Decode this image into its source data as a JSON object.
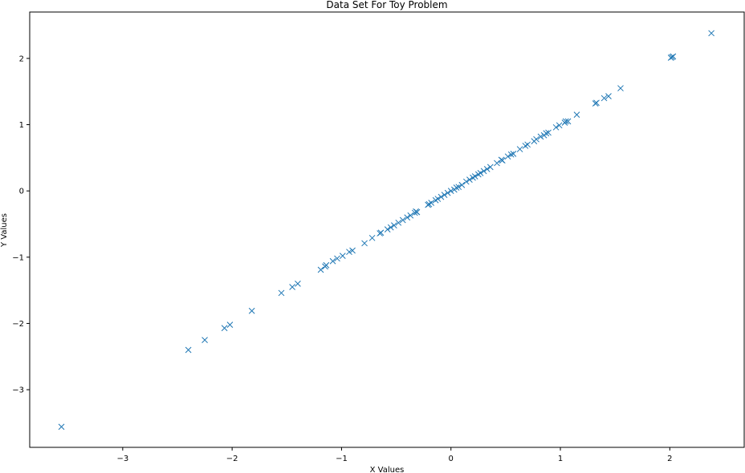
{
  "chart_data": {
    "type": "scatter",
    "title": "Data Set For Toy Problem",
    "xlabel": "X Values",
    "ylabel": "Y Values",
    "xlim": [
      -3.85,
      2.68
    ],
    "ylim": [
      -3.87,
      2.7
    ],
    "xticks": [
      -3,
      -2,
      -1,
      0,
      1,
      2
    ],
    "yticks": [
      -3,
      -2,
      -1,
      0,
      1,
      2
    ],
    "xtick_labels": [
      "−3",
      "−2",
      "−1",
      "0",
      "1",
      "2"
    ],
    "ytick_labels": [
      "−3",
      "−2",
      "−1",
      "0",
      "1",
      "2"
    ],
    "grid": false,
    "marker": "x",
    "color": "#1f77b4",
    "points": [
      [
        -3.56,
        -3.56
      ],
      [
        -2.4,
        -2.4
      ],
      [
        -2.25,
        -2.25
      ],
      [
        -2.07,
        -2.07
      ],
      [
        -2.02,
        -2.02
      ],
      [
        -1.82,
        -1.81
      ],
      [
        -1.55,
        -1.54
      ],
      [
        -1.45,
        -1.45
      ],
      [
        -1.4,
        -1.4
      ],
      [
        -1.19,
        -1.19
      ],
      [
        -1.15,
        -1.14
      ],
      [
        -1.14,
        -1.12
      ],
      [
        -1.08,
        -1.06
      ],
      [
        -1.04,
        -1.02
      ],
      [
        -0.99,
        -0.98
      ],
      [
        -0.93,
        -0.92
      ],
      [
        -0.9,
        -0.9
      ],
      [
        -0.79,
        -0.79
      ],
      [
        -0.72,
        -0.71
      ],
      [
        -0.65,
        -0.64
      ],
      [
        -0.64,
        -0.63
      ],
      [
        -0.58,
        -0.58
      ],
      [
        -0.55,
        -0.55
      ],
      [
        -0.52,
        -0.52
      ],
      [
        -0.48,
        -0.48
      ],
      [
        -0.44,
        -0.44
      ],
      [
        -0.4,
        -0.4
      ],
      [
        -0.37,
        -0.37
      ],
      [
        -0.33,
        -0.33
      ],
      [
        -0.32,
        -0.31
      ],
      [
        -0.31,
        -0.32
      ],
      [
        -0.21,
        -0.21
      ],
      [
        -0.2,
        -0.2
      ],
      [
        -0.18,
        -0.18
      ],
      [
        -0.14,
        -0.14
      ],
      [
        -0.12,
        -0.12
      ],
      [
        -0.09,
        -0.09
      ],
      [
        -0.06,
        -0.06
      ],
      [
        -0.03,
        -0.03
      ],
      [
        0.0,
        0.0
      ],
      [
        0.03,
        0.02
      ],
      [
        0.05,
        0.05
      ],
      [
        0.07,
        0.06
      ],
      [
        0.1,
        0.09
      ],
      [
        0.14,
        0.14
      ],
      [
        0.17,
        0.17
      ],
      [
        0.2,
        0.2
      ],
      [
        0.22,
        0.22
      ],
      [
        0.25,
        0.25
      ],
      [
        0.27,
        0.27
      ],
      [
        0.3,
        0.3
      ],
      [
        0.33,
        0.33
      ],
      [
        0.36,
        0.36
      ],
      [
        0.42,
        0.42
      ],
      [
        0.46,
        0.47
      ],
      [
        0.47,
        0.46
      ],
      [
        0.52,
        0.52
      ],
      [
        0.55,
        0.55
      ],
      [
        0.57,
        0.56
      ],
      [
        0.63,
        0.63
      ],
      [
        0.68,
        0.68
      ],
      [
        0.7,
        0.7
      ],
      [
        0.76,
        0.75
      ],
      [
        0.78,
        0.78
      ],
      [
        0.82,
        0.82
      ],
      [
        0.85,
        0.84
      ],
      [
        0.87,
        0.87
      ],
      [
        0.89,
        0.88
      ],
      [
        0.96,
        0.96
      ],
      [
        0.99,
        0.99
      ],
      [
        1.04,
        1.03
      ],
      [
        1.05,
        1.05
      ],
      [
        1.07,
        1.05
      ],
      [
        1.15,
        1.15
      ],
      [
        1.32,
        1.32
      ],
      [
        1.33,
        1.33
      ],
      [
        1.4,
        1.4
      ],
      [
        1.44,
        1.43
      ],
      [
        1.55,
        1.55
      ],
      [
        2.01,
        2.01
      ],
      [
        2.02,
        2.02
      ],
      [
        2.03,
        2.03
      ],
      [
        2.38,
        2.38
      ]
    ]
  }
}
